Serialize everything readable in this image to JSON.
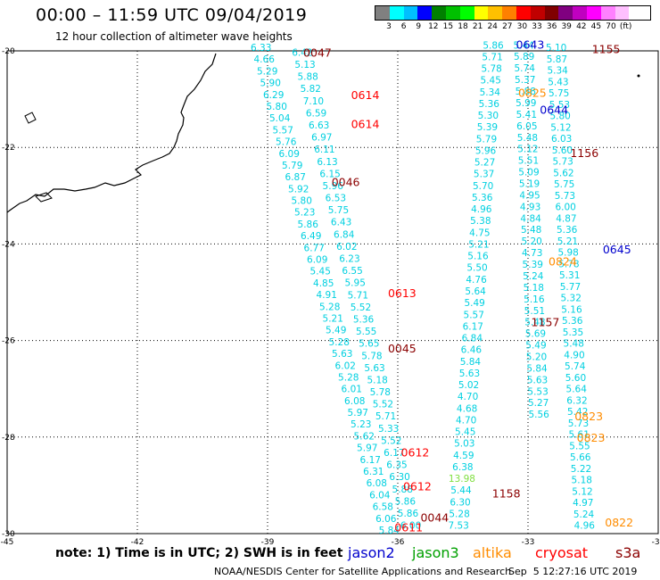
{
  "header": {
    "title": "00:00 – 11:59 UTC 09/04/2019",
    "subtitle": "12 hour collection of altimeter wave heights"
  },
  "scale": {
    "colors": [
      "#808080",
      "#00ffff",
      "#00bfff",
      "#0000ff",
      "#008000",
      "#00c000",
      "#00ff00",
      "#ffff00",
      "#ffc000",
      "#ff8000",
      "#ff0000",
      "#c00000",
      "#800000",
      "#800080",
      "#c000c0",
      "#ff00ff",
      "#ff80ff",
      "#ffc0ff"
    ],
    "labels": [
      "3",
      "6",
      "9",
      "12",
      "15",
      "18",
      "21",
      "24",
      "27",
      "30",
      "33",
      "36",
      "39",
      "42",
      "45",
      "70",
      "(ft)"
    ]
  },
  "map": {
    "lat_ticks": [
      "-20",
      "-22",
      "-24",
      "-26",
      "-28",
      "-30"
    ],
    "lon_ticks": [
      "-45",
      "-42",
      "-39",
      "-36",
      "-33",
      "-30"
    ],
    "lat_range": [
      -30,
      -20
    ],
    "lon_range": [
      -45,
      -30
    ]
  },
  "times": [
    {
      "t": "0047",
      "lon": -37.85,
      "lat": -20.12,
      "color": "#8b0000"
    },
    {
      "t": "0614",
      "lon": -36.75,
      "lat": -21.0,
      "color": "#ff0000"
    },
    {
      "t": "0614",
      "lon": -36.75,
      "lat": -21.6,
      "color": "#ff0000"
    },
    {
      "t": "0046",
      "lon": -37.2,
      "lat": -22.8,
      "color": "#8b0000"
    },
    {
      "t": "0613",
      "lon": -35.9,
      "lat": -25.1,
      "color": "#ff0000"
    },
    {
      "t": "0045",
      "lon": -35.9,
      "lat": -26.25,
      "color": "#8b0000"
    },
    {
      "t": "0612",
      "lon": -35.6,
      "lat": -28.4,
      "color": "#ff0000"
    },
    {
      "t": "0612",
      "lon": -35.55,
      "lat": -29.1,
      "color": "#ff0000"
    },
    {
      "t": "0044",
      "lon": -35.15,
      "lat": -29.75,
      "color": "#8b0000"
    },
    {
      "t": "0611",
      "lon": -35.75,
      "lat": -29.95,
      "color": "#ff0000"
    },
    {
      "t": "0643",
      "lon": -32.95,
      "lat": -19.95,
      "color": "#0000cd"
    },
    {
      "t": "1155",
      "lon": -31.2,
      "lat": -20.05,
      "color": "#8b0000"
    },
    {
      "t": "0825",
      "lon": -32.9,
      "lat": -20.95,
      "color": "#ff8c00"
    },
    {
      "t": "0644",
      "lon": -32.4,
      "lat": -21.3,
      "color": "#0000cd"
    },
    {
      "t": "1156",
      "lon": -31.7,
      "lat": -22.2,
      "color": "#8b0000"
    },
    {
      "t": "0645",
      "lon": -30.95,
      "lat": -24.2,
      "color": "#0000cd"
    },
    {
      "t": "0824",
      "lon": -32.2,
      "lat": -24.45,
      "color": "#ff8c00"
    },
    {
      "t": "1157",
      "lon": -32.6,
      "lat": -25.7,
      "color": "#8b0000"
    },
    {
      "t": "0823",
      "lon": -31.6,
      "lat": -27.65,
      "color": "#ff8c00"
    },
    {
      "t": "0823",
      "lon": -31.55,
      "lat": -28.1,
      "color": "#ff8c00"
    },
    {
      "t": "1158",
      "lon": -33.5,
      "lat": -29.25,
      "color": "#8b0000"
    },
    {
      "t": "0822",
      "lon": -30.9,
      "lat": -29.85,
      "color": "#ff8c00"
    }
  ],
  "tracks": [
    {
      "color": "#00d0e0",
      "lon0": -39.15,
      "lat0": -20.0,
      "lon1": -36.2,
      "lat1": -30.0,
      "values": [
        "6.33",
        "4.66",
        "5.29",
        "5.90",
        "6.29",
        "5.80",
        "5.04",
        "5.57",
        "5.76",
        "6.09",
        "5.79",
        "6.87",
        "5.92",
        "5.80",
        "5.23",
        "5.86",
        "6.49",
        "6.77",
        "6.09",
        "5.45",
        "4.85",
        "4.91",
        "5.28",
        "5.21",
        "5.49",
        "5.28",
        "5.63",
        "6.02",
        "5.28",
        "6.01",
        "6.08",
        "5.97",
        "5.23",
        "5.62",
        "5.97",
        "6.17",
        "6.31",
        "6.08",
        "6.04",
        "6.58",
        "6.06",
        "5.84"
      ]
    },
    {
      "color": "#00d0e0",
      "lon0": -38.2,
      "lat0": -20.1,
      "lon1": -35.7,
      "lat1": -29.9,
      "values": [
        "6.42",
        "5.13",
        "5.88",
        "5.82",
        "7.10",
        "6.59",
        "6.63",
        "6.97",
        "6.11",
        "6.13",
        "6.15",
        "5.96",
        "6.53",
        "5.75",
        "6.43",
        "6.84",
        "6.02",
        "6.23",
        "6.55",
        "5.95",
        "5.71",
        "5.52",
        "5.36",
        "5.55",
        "5.65",
        "5.78",
        "5.63",
        "5.18",
        "5.78",
        "5.52",
        "5.71",
        "5.33",
        "5.52",
        "6.17",
        "6.35",
        "6.30",
        "5.88",
        "5.86",
        "5.86",
        "6.00"
      ]
    },
    {
      "color": "#00d0e0",
      "lon0": -33.8,
      "lat0": -19.95,
      "lon1": -34.6,
      "lat1": -29.9,
      "values": [
        "5.86",
        "5.71",
        "5.78",
        "5.45",
        "5.34",
        "5.36",
        "5.30",
        "5.39",
        "5.79",
        "5.96",
        "5.27",
        "5.37",
        "5.70",
        "5.36",
        "4.96",
        "5.38",
        "4.75",
        "5.21",
        "5.16",
        "5.50",
        "4.76",
        "5.64",
        "5.49",
        "5.57",
        "6.17",
        "6.84",
        "6.46",
        "5.84",
        "5.63",
        "5.02",
        "4.70",
        "4.68",
        "4.70",
        "5.45",
        "5.03",
        "4.59",
        "6.38",
        "13.98",
        "5.44",
        "6.30",
        "5.28",
        "7.53"
      ]
    },
    {
      "color": "#00d0e0",
      "lon0": -33.1,
      "lat0": -19.95,
      "lon1": -32.75,
      "lat1": -27.6,
      "values": [
        "5.44",
        "5.89",
        "5.74",
        "5.37",
        "5.88",
        "5.99",
        "5.41",
        "6.05",
        "5.48",
        "5.12",
        "5.51",
        "5.09",
        "5.19",
        "4.95",
        "4.93",
        "4.84",
        "5.48",
        "5.20",
        "4.73",
        "5.39",
        "5.24",
        "5.18",
        "5.16",
        "5.51",
        "5.48",
        "5.69",
        "5.49",
        "5.20",
        "5.84",
        "5.63",
        "5.53",
        "5.27",
        "5.56"
      ]
    },
    {
      "color": "#00d0e0",
      "lon0": -32.35,
      "lat0": -20.0,
      "lon1": -31.7,
      "lat1": -29.9,
      "values": [
        "5.10",
        "5.87",
        "5.34",
        "5.43",
        "5.75",
        "5.53",
        "5.80",
        "5.12",
        "6.03",
        "5.60",
        "5.73",
        "5.62",
        "5.75",
        "5.73",
        "6.00",
        "4.87",
        "5.36",
        "5.21",
        "5.98",
        "5.78",
        "5.31",
        "5.77",
        "5.32",
        "5.16",
        "5.36",
        "5.35",
        "5.48",
        "4.90",
        "5.74",
        "5.60",
        "5.64",
        "6.32",
        "5.42",
        "5.73",
        "5.61",
        "5.55",
        "5.66",
        "5.22",
        "5.18",
        "5.12",
        "4.97",
        "5.24",
        "4.96"
      ]
    }
  ],
  "footer": {
    "note": "note: 1) Time is in UTC; 2) SWH is in feet",
    "sats": [
      {
        "name": "jason2",
        "color": "#0000cd"
      },
      {
        "name": "jason3",
        "color": "#00a000"
      },
      {
        "name": "altika",
        "color": "#ff8c00"
      },
      {
        "name": "cryosat",
        "color": "#ff0000"
      },
      {
        "name": "s3a",
        "color": "#8b0000"
      }
    ],
    "credit": "NOAA/NESDIS Center for Satellite Applications and Research",
    "timestamp": "Sep  5 12:27:16 UTC 2019"
  }
}
